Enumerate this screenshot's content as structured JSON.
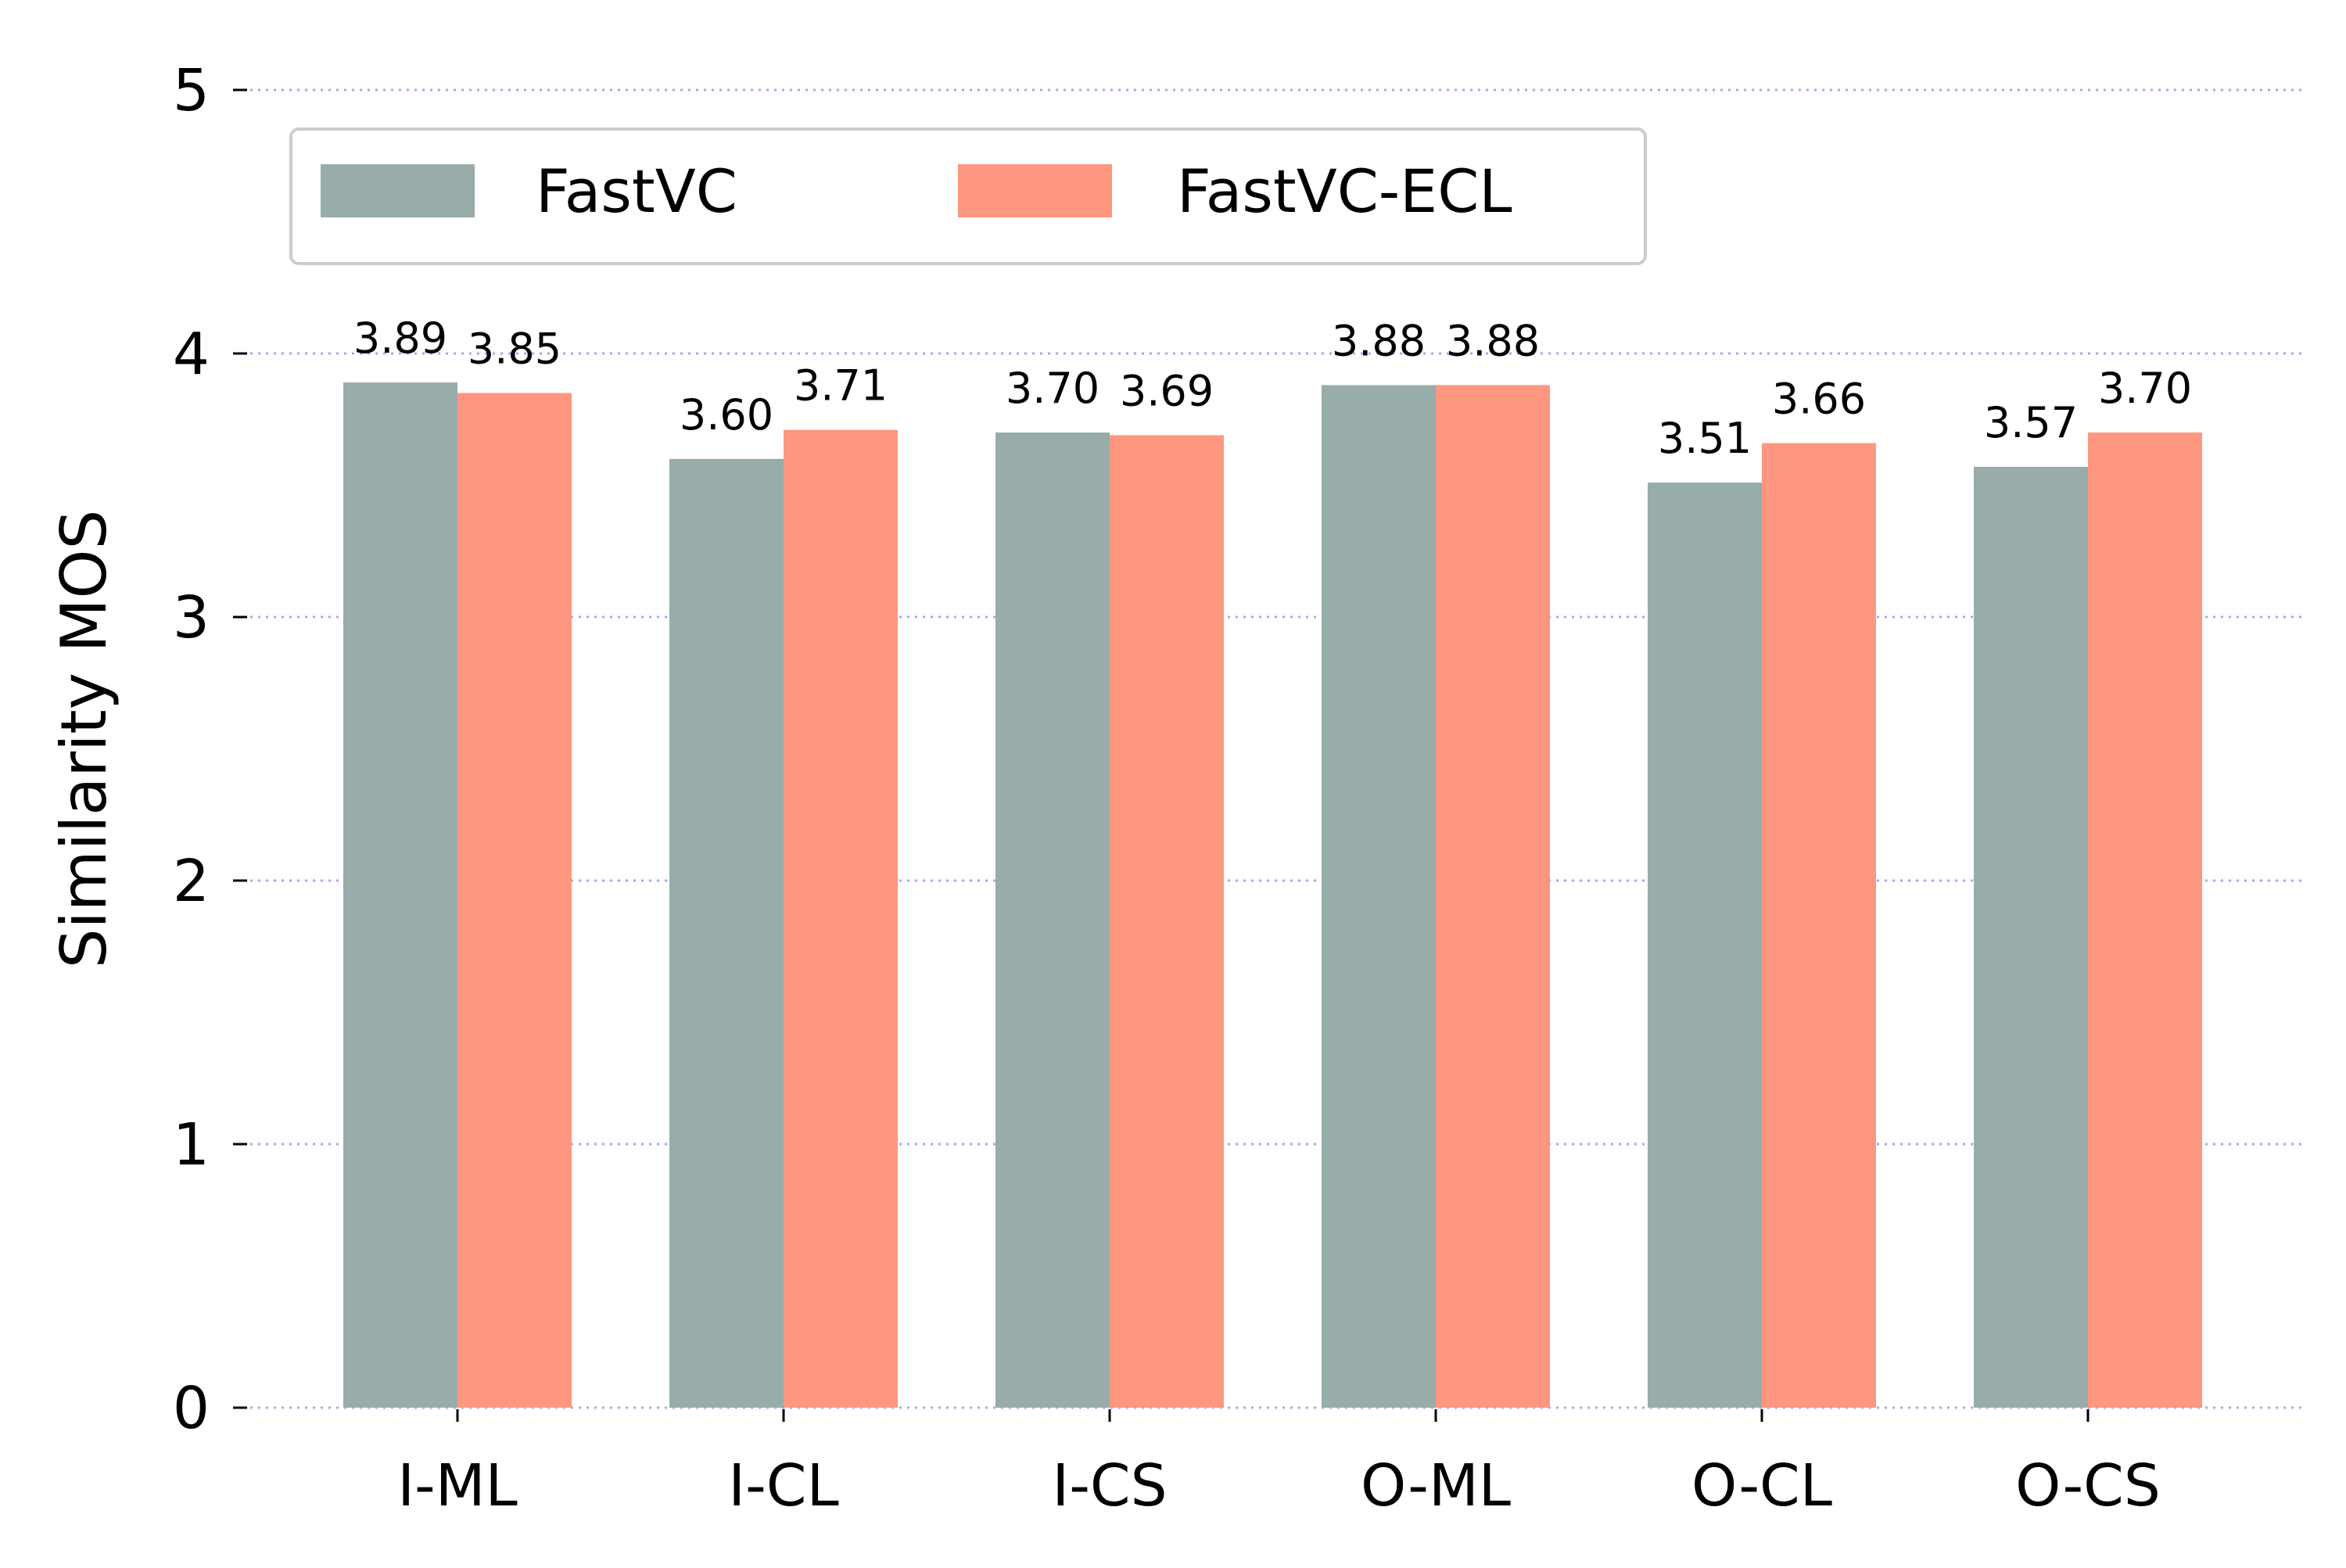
{
  "chart_data": {
    "type": "bar",
    "ylabel": "Similarity MOS",
    "xlabel": "",
    "ylim": [
      0,
      5
    ],
    "yticks": [
      0,
      1,
      2,
      3,
      4,
      5
    ],
    "grid": true,
    "legend_position": "top-left",
    "categories": [
      "I-ML",
      "I-CL",
      "I-CS",
      "O-ML",
      "O-CL",
      "O-CS"
    ],
    "series": [
      {
        "name": "FastVC",
        "color": "#98acaa",
        "values": [
          3.89,
          3.6,
          3.7,
          3.88,
          3.51,
          3.57
        ],
        "labels": [
          "3.89",
          "3.60",
          "3.70",
          "3.88",
          "3.51",
          "3.57"
        ]
      },
      {
        "name": "FastVC-ECL",
        "color": "#ff967f",
        "values": [
          3.85,
          3.71,
          3.69,
          3.88,
          3.66,
          3.7
        ],
        "labels": [
          "3.85",
          "3.71",
          "3.69",
          "3.88",
          "3.66",
          "3.70"
        ]
      }
    ],
    "grid_color": "#8a8ae6"
  }
}
